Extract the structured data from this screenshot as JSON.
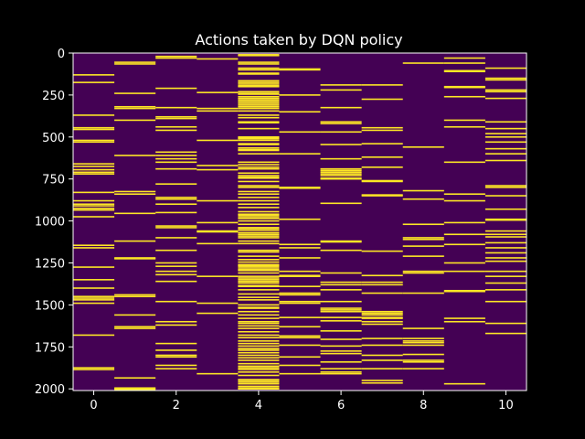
{
  "chart_data": {
    "type": "heatmap",
    "title": "Actions taken by DQN policy",
    "xlabel": "",
    "ylabel": "",
    "colormap": "viridis (binary: 0 = off, 1 = action taken)",
    "colors": {
      "background": "#000000",
      "off": "#440154",
      "on": "#fde725",
      "text": "#ffffff"
    },
    "xlim": [
      -0.5,
      10.5
    ],
    "ylim": [
      2010,
      0
    ],
    "y_inverted": true,
    "xticks": [
      0,
      2,
      4,
      6,
      8,
      10
    ],
    "yticks": [
      0,
      250,
      500,
      750,
      1000,
      1250,
      1500,
      1750,
      2000
    ],
    "grid": false,
    "legend": "none",
    "columns": [
      {
        "action": 0,
        "taken_at_steps": [
          130,
          175,
          370,
          445,
          455,
          520,
          530,
          660,
          675,
          695,
          710,
          720,
          830,
          880,
          900,
          910,
          925,
          935,
          975,
          1145,
          1160,
          1275,
          1350,
          1400,
          1450,
          1460,
          1470,
          1490,
          1680,
          1875,
          1885
        ]
      },
      {
        "action": 1,
        "taken_at_steps": [
          55,
          65,
          240,
          320,
          330,
          400,
          610,
          825,
          840,
          955,
          1120,
          1220,
          1225,
          1440,
          1450,
          1560,
          1630,
          1640,
          1935,
          1995,
          2000,
          2005
        ]
      },
      {
        "action": 2,
        "taken_at_steps": [
          20,
          30,
          210,
          325,
          380,
          390,
          440,
          460,
          590,
          610,
          630,
          650,
          690,
          780,
          860,
          870,
          900,
          950,
          1030,
          1040,
          1100,
          1175,
          1250,
          1270,
          1300,
          1320,
          1360,
          1480,
          1600,
          1620,
          1730,
          1770,
          1800,
          1810,
          1860,
          1880
        ]
      },
      {
        "action": 3,
        "taken_at_steps": [
          35,
          235,
          330,
          345,
          520,
          670,
          695,
          880,
          1010,
          1060,
          1065,
          1135,
          1330,
          1490,
          1550,
          1910
        ]
      },
      {
        "action": 4,
        "taken_at_steps": [
          10,
          15,
          55,
          65,
          90,
          100,
          120,
          125,
          165,
          175,
          185,
          195,
          200,
          230,
          240,
          245,
          260,
          270,
          280,
          290,
          300,
          310,
          320,
          330,
          345,
          370,
          385,
          410,
          415,
          450,
          500,
          505,
          510,
          520,
          540,
          545,
          565,
          575,
          580,
          600,
          650,
          665,
          680,
          690,
          715,
          730,
          740,
          745,
          765,
          790,
          800,
          825,
          840,
          860,
          880,
          900,
          920,
          945,
          960,
          965,
          975,
          985,
          1000,
          1020,
          1040,
          1045,
          1055,
          1070,
          1080,
          1090,
          1100,
          1120,
          1135,
          1175,
          1185,
          1210,
          1230,
          1245,
          1260,
          1265,
          1270,
          1280,
          1290,
          1295,
          1310,
          1330,
          1340,
          1350,
          1360,
          1370,
          1385,
          1390,
          1410,
          1435,
          1455,
          1470,
          1500,
          1515,
          1520,
          1540,
          1560,
          1580,
          1600,
          1610,
          1625,
          1640,
          1660,
          1680,
          1695,
          1715,
          1730,
          1745,
          1760,
          1770,
          1785,
          1800,
          1815,
          1830,
          1850,
          1865,
          1875,
          1885,
          1900,
          1920,
          1945,
          1950,
          1960,
          1970,
          1985,
          1995,
          2000
        ]
      },
      {
        "action": 5,
        "taken_at_steps": [
          95,
          100,
          250,
          350,
          470,
          600,
          800,
          805,
          990,
          1140,
          1160,
          1220,
          1300,
          1325,
          1330,
          1390,
          1430,
          1440,
          1480,
          1490,
          1575,
          1630,
          1685,
          1695,
          1740,
          1810,
          1860,
          1910
        ]
      },
      {
        "action": 6,
        "taken_at_steps": [
          190,
          220,
          325,
          410,
          420,
          470,
          545,
          630,
          690,
          700,
          710,
          720,
          730,
          745,
          750,
          895,
          1120,
          1125,
          1175,
          1310,
          1365,
          1380,
          1410,
          1480,
          1520,
          1530,
          1540,
          1575,
          1595,
          1655,
          1705,
          1745,
          1775,
          1790,
          1840,
          1880,
          1900,
          1910
        ]
      },
      {
        "action": 7,
        "taken_at_steps": [
          190,
          275,
          445,
          460,
          540,
          620,
          680,
          760,
          765,
          845,
          850,
          1180,
          1325,
          1365,
          1380,
          1430,
          1540,
          1550,
          1560,
          1575,
          1580,
          1600,
          1615,
          1700,
          1740,
          1800,
          1830,
          1880,
          1950,
          1965
        ]
      },
      {
        "action": 8,
        "taken_at_steps": [
          60,
          560,
          820,
          870,
          1020,
          1100,
          1110,
          1150,
          1210,
          1300,
          1310,
          1430,
          1640,
          1700,
          1715,
          1725,
          1740,
          1795,
          1830,
          1840,
          1880
        ]
      },
      {
        "action": 9,
        "taken_at_steps": [
          30,
          60,
          105,
          110,
          200,
          205,
          260,
          400,
          440,
          650,
          840,
          880,
          1010,
          1080,
          1140,
          1250,
          1300,
          1415,
          1420,
          1580,
          1600,
          1970
        ]
      },
      {
        "action": 10,
        "taken_at_steps": [
          90,
          150,
          160,
          220,
          230,
          270,
          410,
          450,
          480,
          500,
          530,
          570,
          600,
          640,
          790,
          800,
          850,
          930,
          990,
          995,
          1060,
          1080,
          1095,
          1130,
          1160,
          1190,
          1220,
          1240,
          1300,
          1330,
          1370,
          1410,
          1480,
          1610,
          1670
        ]
      }
    ]
  }
}
